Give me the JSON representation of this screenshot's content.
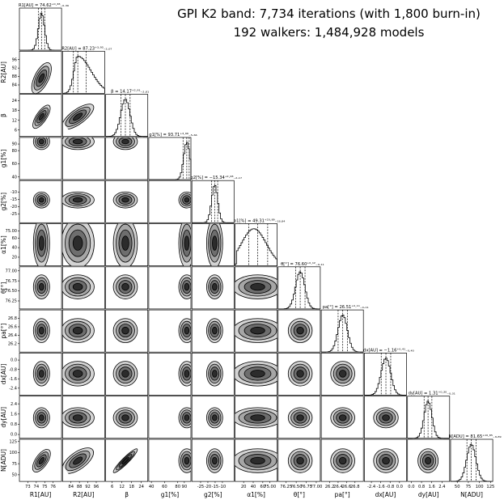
{
  "title": {
    "line1": "GPI K2 band: 7,734 iterations (with 1,800 burn-in)",
    "line2": "192 walkers: 1,484,928 models"
  },
  "chart_data": {
    "type": "corner",
    "parameters": [
      {
        "name": "R1[AU]",
        "median": 74.62,
        "plus": 0.38,
        "minus": 0.36,
        "range": [
          72,
          77
        ],
        "ticks": [
          "73",
          "74",
          "75",
          "76"
        ],
        "ticks_at": [
          73,
          74,
          75,
          76
        ],
        "shape": "normal"
      },
      {
        "name": "R2[AU]",
        "median": 87.23,
        "plus": 3.93,
        "minus": 2.07,
        "range": [
          80,
          100
        ],
        "ticks": [
          "84",
          "88",
          "92",
          "96"
        ],
        "ticks_at": [
          84,
          88,
          92,
          96
        ],
        "shape": "skew"
      },
      {
        "name": "β",
        "median": 14.17,
        "plus": 2.91,
        "minus": 2.81,
        "range": [
          2,
          28
        ],
        "ticks": [
          "6",
          "12",
          "18",
          "24"
        ],
        "ticks_at": [
          6,
          12,
          18,
          24
        ],
        "shape": "normal"
      },
      {
        "name": "g1[%]",
        "median": 93.71,
        "plus": 3.66,
        "minus": 5.66,
        "range": [
          36,
          100
        ],
        "ticks": [
          "40",
          "60",
          "80",
          "90"
        ],
        "ticks_at": [
          40,
          60,
          80,
          90
        ],
        "shape": "edge"
      },
      {
        "name": "g2[%]",
        "median": -15.34,
        "plus": 2.08,
        "minus": 2.17,
        "range": [
          -31,
          -2
        ],
        "ticks": [
          "-25",
          "-20",
          "-15",
          "-10"
        ],
        "ticks_at": [
          -25,
          -20,
          -15,
          -10
        ],
        "shape": "normal"
      },
      {
        "name": "α1[%]",
        "median": 49.31,
        "plus": 20.89,
        "minus": 18.84,
        "range": [
          2,
          90
        ],
        "ticks": [
          "20",
          "40",
          "60",
          "75.00"
        ],
        "ticks_at": [
          20,
          40,
          60,
          75
        ],
        "shape": "broad"
      },
      {
        "name": "θ[°]",
        "median": 76.6,
        "plus": 0.12,
        "minus": 0.11,
        "range": [
          76.05,
          77.1
        ],
        "ticks": [
          "76.25",
          "76.50",
          "76.75",
          "77.00"
        ],
        "ticks_at": [
          76.25,
          76.5,
          76.75,
          77.0
        ],
        "shape": "normal"
      },
      {
        "name": "pa[°]",
        "median": 26.51,
        "plus": 0.11,
        "minus": 0.11,
        "range": [
          26.0,
          27.0
        ],
        "ticks": [
          "26.2",
          "26.4",
          "26.6",
          "26.8"
        ],
        "ticks_at": [
          26.2,
          26.4,
          26.6,
          26.8
        ],
        "shape": "normal"
      },
      {
        "name": "dx[AU]",
        "median": -1.16,
        "plus": 0.41,
        "minus": 0.4,
        "range": [
          -3.0,
          0.6
        ],
        "ticks": [
          "-2.4",
          "-1.6",
          "-0.8",
          "0.0"
        ],
        "ticks_at": [
          -2.4,
          -1.6,
          -0.8,
          0.0
        ],
        "shape": "normal"
      },
      {
        "name": "dy[AU]",
        "median": 1.31,
        "plus": 0.3,
        "minus": 0.31,
        "range": [
          -0.3,
          3.0
        ],
        "ticks": [
          "0.0",
          "0.8",
          "1.6",
          "2.4"
        ],
        "ticks_at": [
          0.0,
          0.8,
          1.6,
          2.4
        ],
        "shape": "normal"
      },
      {
        "name": "N[ADU]",
        "median": 81.65,
        "plus": 10.85,
        "minus": 9.89,
        "range": [
          35,
          130
        ],
        "ticks": [
          "50",
          "75",
          "100",
          "125"
        ],
        "ticks_at": [
          50,
          75,
          100,
          125
        ],
        "shape": "normal"
      }
    ],
    "histogram_top_labels": [
      "R1[AU] = 74.62⁺⁰·³⁸₋₀.₃₆",
      "R2[AU] = 87.23⁺³·⁹³₋₂.₀₇",
      "β = 14.17⁺²·⁹¹₋₂.₈₁",
      "g1[%] = 93.71⁺³·⁶⁶₋₅.₆₆",
      "g2[%] = −15.34⁺²·⁰⁸₋₂.₁₇",
      "α1[%] = 49.31⁺²⁰·⁸⁹₋₁₈.₈₄",
      "θ[°] = 76.60⁺⁰·¹²₋₀.₁₁",
      "pa[°] = 26.51⁺⁰·¹¹₋₀.₁₁",
      "dx[AU] = −1.16⁺⁰·⁴¹₋₀.₄₀",
      "dy[AU] = 1.31⁺⁰·³⁰₋₀.₃₁",
      "N[ADU] = 81.65⁺¹⁰·⁸⁵₋₉.₈₉"
    ],
    "correlated_pairs": [
      {
        "i": 1,
        "j": 0,
        "rho": 0.7
      },
      {
        "i": 2,
        "j": 0,
        "rho": 0.75
      },
      {
        "i": 2,
        "j": 1,
        "rho": 0.75
      },
      {
        "i": 10,
        "j": 0,
        "rho": 0.65
      },
      {
        "i": 10,
        "j": 1,
        "rho": 0.65
      },
      {
        "i": 10,
        "j": 2,
        "rho": 0.93
      }
    ],
    "colors": {
      "contour_edge": "#000000",
      "fill_levels": [
        "#d4d4d4",
        "#a6a6a6",
        "#6e6e6e",
        "#2c2c2c"
      ],
      "quantile_line": "#000000"
    }
  }
}
